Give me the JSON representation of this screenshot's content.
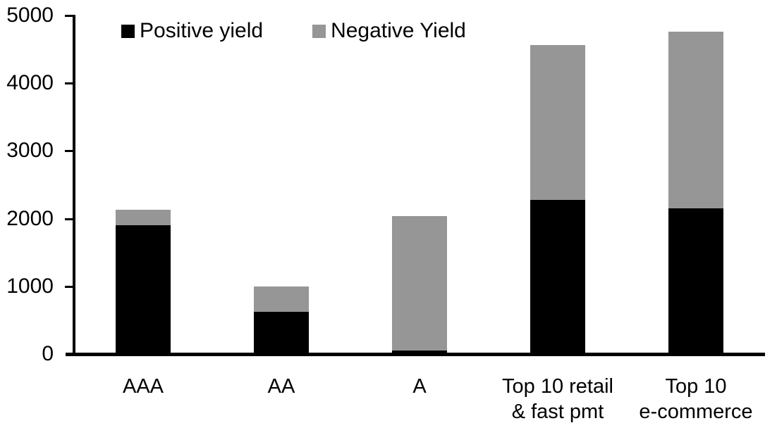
{
  "chart_data": {
    "type": "bar",
    "stacked": true,
    "title": "",
    "xlabel": "",
    "ylabel": "",
    "categories": [
      "AAA",
      "AA",
      "A",
      "Top 10 retail\n& fast pmt",
      "Top 10\ne-commerce"
    ],
    "series": [
      {
        "name": "Positive yield",
        "color": "#000000",
        "values": [
          1900,
          620,
          50,
          2280,
          2150
        ]
      },
      {
        "name": "Negative Yield",
        "color": "#969696",
        "values": [
          230,
          380,
          1990,
          2280,
          2610
        ]
      }
    ],
    "stack_totals": [
      2130,
      1000,
      2040,
      4560,
      4760
    ],
    "ylim": [
      0,
      5000
    ],
    "ytick_interval": 1000,
    "ytick_labels": [
      "0",
      "1000",
      "2000",
      "3000",
      "4000",
      "5000"
    ],
    "grid": false,
    "legend_position": "top-left-inside",
    "axis_color": "#000000",
    "background_color": "#ffffff"
  }
}
